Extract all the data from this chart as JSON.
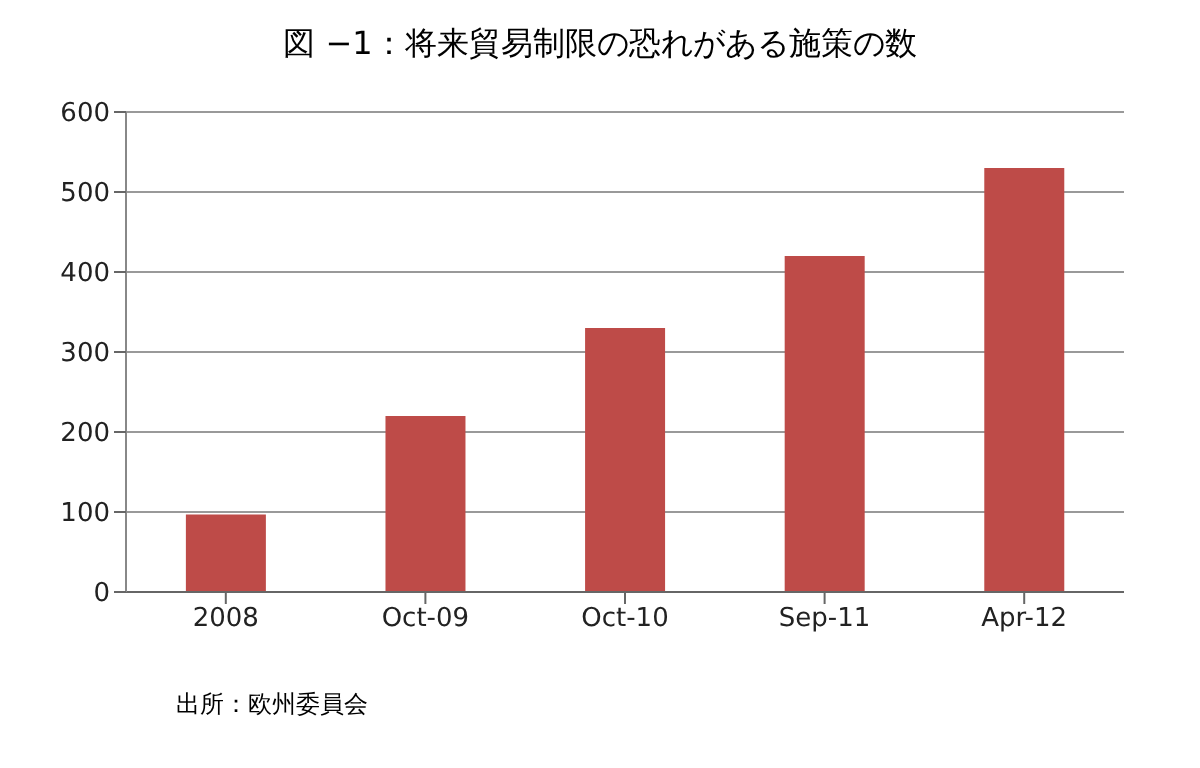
{
  "chart_data": {
    "type": "bar",
    "title": "図 −1：将来貿易制限の恐れがある施策の数",
    "categories": [
      "2008",
      "Oct-09",
      "Oct-10",
      "Sep-11",
      "Apr-12"
    ],
    "values": [
      97,
      220,
      330,
      420,
      530
    ],
    "color": "#be4b48",
    "ylim": [
      0,
      600
    ],
    "yticks": [
      0,
      100,
      200,
      300,
      400,
      500,
      600
    ],
    "grid": "y",
    "annotations": [
      "出所：欧州委員会"
    ]
  }
}
